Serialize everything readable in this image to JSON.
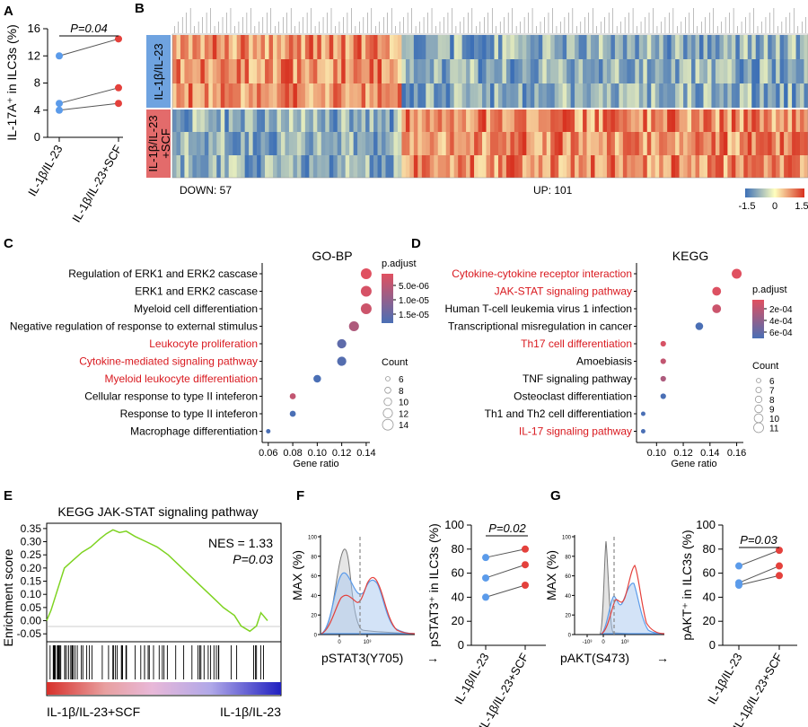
{
  "panels": {
    "A": "A",
    "B": "B",
    "C": "C",
    "D": "D",
    "E": "E",
    "F": "F",
    "G": "G"
  },
  "colors": {
    "blue": "#5b9bea",
    "red": "#e4413c",
    "line": "#555555",
    "gsea": "#7ed321"
  },
  "chart_data": [
    {
      "id": "A",
      "type": "scatter",
      "title": "",
      "ylabel": "IL-17A⁺ in ILC3s (%)",
      "categories": [
        "IL-1β/IL-23",
        "IL-1β/IL-23+SCF"
      ],
      "ylim": [
        0,
        16
      ],
      "yticks": [
        0,
        4,
        8,
        12,
        16
      ],
      "pairs": [
        [
          12,
          14.5
        ],
        [
          5,
          7.3
        ],
        [
          4,
          5
        ]
      ],
      "pvalue": "P=0.04"
    },
    {
      "id": "B",
      "type": "heatmap",
      "row_groups": [
        "IL-1β/IL-23",
        "IL-1β/IL-23\n+SCF"
      ],
      "row_group_colors": [
        "#6fa3e0",
        "#e36b6b"
      ],
      "down_label": "DOWN: 57",
      "up_label": "UP: 101",
      "down_count": 57,
      "up_count": 101,
      "samples_per_group": 3,
      "colorbar_ticks": [
        "-1.5",
        "0",
        "1.5"
      ],
      "colorbar_range": [
        -1.5,
        1.5
      ],
      "colorbar_colors": [
        "#3c6fb6",
        "#ffffbf",
        "#d7301f"
      ]
    },
    {
      "id": "C",
      "type": "scatter",
      "title": "GO-BP",
      "xlabel": "Gene ratio",
      "xlim": [
        0.055,
        0.143
      ],
      "xticks": [
        "0.06",
        "0.08",
        "0.10",
        "0.12",
        "0.14"
      ],
      "xtick_values": [
        0.06,
        0.08,
        0.1,
        0.12,
        0.14
      ],
      "terms": [
        {
          "label": "Regulation of ERK1 and ERK2 cascase",
          "ratio": 0.14,
          "count": 14,
          "padj": 1e-06,
          "highlight": false
        },
        {
          "label": "ERK1 and ERK2 cascase",
          "ratio": 0.14,
          "count": 14,
          "padj": 2e-06,
          "highlight": false
        },
        {
          "label": "Myeloid cell differentiation",
          "ratio": 0.14,
          "count": 14,
          "padj": 3e-06,
          "highlight": false
        },
        {
          "label": "Negative regulation of response to external stimulus",
          "ratio": 0.13,
          "count": 13,
          "padj": 6e-06,
          "highlight": false
        },
        {
          "label": "Leukocyte proliferation",
          "ratio": 0.12,
          "count": 12,
          "padj": 1.4e-05,
          "highlight": true
        },
        {
          "label": "Cytokine-mediated signaling pathway",
          "ratio": 0.12,
          "count": 12,
          "padj": 1.5e-05,
          "highlight": true
        },
        {
          "label": "Myeloid leukocyte differentiation",
          "ratio": 0.1,
          "count": 10,
          "padj": 1.6e-05,
          "highlight": true
        },
        {
          "label": "Cellular response to type II inteferon",
          "ratio": 0.08,
          "count": 8,
          "padj": 4e-06,
          "highlight": false
        },
        {
          "label": "Response to type II inteferon",
          "ratio": 0.08,
          "count": 8,
          "padj": 1.6e-05,
          "highlight": false
        },
        {
          "label": "Macrophage differentiation",
          "ratio": 0.06,
          "count": 6,
          "padj": 1.6e-05,
          "highlight": false
        }
      ],
      "padj_legend_title": "p.adjust",
      "padj_ticks": [
        "5.0e-06",
        "1.0e-05",
        "1.5e-05"
      ],
      "count_legend_title": "Count",
      "count_ticks": [
        "6",
        "8",
        "10",
        "12",
        "14"
      ]
    },
    {
      "id": "D",
      "type": "scatter",
      "title": "KEGG",
      "xlabel": "Gene ratio",
      "xlim": [
        0.085,
        0.165
      ],
      "xticks": [
        "0.10",
        "0.12",
        "0.14",
        "0.16"
      ],
      "xtick_values": [
        0.1,
        0.12,
        0.14,
        0.16
      ],
      "terms": [
        {
          "label": "Cytokine-cytokine receptor interaction",
          "ratio": 0.16,
          "count": 11,
          "padj": 0.00015,
          "highlight": true
        },
        {
          "label": "JAK-STAT signaling pathway",
          "ratio": 0.145,
          "count": 10,
          "padj": 0.00016,
          "highlight": true
        },
        {
          "label": "Human T-cell leukemia virus 1 infection",
          "ratio": 0.145,
          "count": 10,
          "padj": 0.00022,
          "highlight": false
        },
        {
          "label": "Transcriptional misregulation in cancer",
          "ratio": 0.132,
          "count": 9,
          "padj": 0.00065,
          "highlight": false
        },
        {
          "label": "Th17 cell differentiation",
          "ratio": 0.105,
          "count": 7,
          "padj": 0.00018,
          "highlight": true
        },
        {
          "label": "Amoebiasis",
          "ratio": 0.105,
          "count": 7,
          "padj": 0.00025,
          "highlight": false
        },
        {
          "label": "TNF signaling pathway",
          "ratio": 0.105,
          "count": 7,
          "padj": 0.00032,
          "highlight": false
        },
        {
          "label": "Osteoclast differentiation",
          "ratio": 0.105,
          "count": 7,
          "padj": 0.00065,
          "highlight": false
        },
        {
          "label": "Th1 and Th2 cell differentiation",
          "ratio": 0.09,
          "count": 6,
          "padj": 0.00065,
          "highlight": false
        },
        {
          "label": "IL-17 signaling pathway",
          "ratio": 0.09,
          "count": 6,
          "padj": 0.00065,
          "highlight": true
        }
      ],
      "padj_legend_title": "p.adjust",
      "padj_ticks": [
        "2e-04",
        "4e-04",
        "6e-04"
      ],
      "count_legend_title": "Count",
      "count_ticks": [
        "6",
        "7",
        "8",
        "9",
        "10",
        "11"
      ]
    },
    {
      "id": "E",
      "type": "line",
      "title": "KEGG JAK-STAT signaling pathway",
      "ylabel": "Enrichment score",
      "ylim": [
        -0.08,
        0.37
      ],
      "yticks": [
        "-0.05",
        "0.00",
        "0.05",
        "0.10",
        "0.15",
        "0.20",
        "0.25",
        "0.30",
        "0.35"
      ],
      "ytick_values": [
        -0.05,
        0,
        0.05,
        0.1,
        0.15,
        0.2,
        0.25,
        0.3,
        0.35
      ],
      "es_points": [
        [
          0,
          0
        ],
        [
          0.02,
          0.04
        ],
        [
          0.05,
          0.12
        ],
        [
          0.08,
          0.2
        ],
        [
          0.12,
          0.23
        ],
        [
          0.16,
          0.26
        ],
        [
          0.2,
          0.28
        ],
        [
          0.24,
          0.31
        ],
        [
          0.27,
          0.33
        ],
        [
          0.3,
          0.345
        ],
        [
          0.33,
          0.335
        ],
        [
          0.36,
          0.34
        ],
        [
          0.4,
          0.32
        ],
        [
          0.45,
          0.3
        ],
        [
          0.5,
          0.28
        ],
        [
          0.55,
          0.25
        ],
        [
          0.6,
          0.21
        ],
        [
          0.65,
          0.17
        ],
        [
          0.7,
          0.13
        ],
        [
          0.75,
          0.09
        ],
        [
          0.8,
          0.05
        ],
        [
          0.85,
          0.02
        ],
        [
          0.88,
          -0.02
        ],
        [
          0.92,
          -0.04
        ],
        [
          0.95,
          -0.02
        ],
        [
          0.97,
          0.03
        ],
        [
          1,
          0
        ]
      ],
      "nes": "NES = 1.33",
      "pvalue": "P=0.03",
      "left_label": "IL-1β/IL-23+SCF",
      "right_label": "IL-1β/IL-23"
    },
    {
      "id": "F",
      "type": "scatter",
      "histogram": {
        "ylabel": "MAX (%)",
        "xlabel": "pSTAT3(Y705)",
        "yticks": [
          "0",
          "20",
          "40",
          "60",
          "80",
          "100"
        ],
        "xticks": [
          "0",
          "10³"
        ]
      },
      "ylabel": "pSTAT3⁺ in ILC3s (%)",
      "categories": [
        "IL-1β/IL-23",
        "IL-1β/IL-23+SCF"
      ],
      "ylim": [
        0,
        100
      ],
      "yticks": [
        0,
        20,
        40,
        60,
        80,
        100
      ],
      "pairs": [
        [
          73,
          80
        ],
        [
          56,
          67
        ],
        [
          40,
          50
        ]
      ],
      "pvalue": "P=0.02"
    },
    {
      "id": "G",
      "type": "scatter",
      "histogram": {
        "ylabel": "MAX (%)",
        "xlabel": "pAKT(S473)",
        "yticks": [
          "0",
          "20",
          "40",
          "60",
          "80",
          "100"
        ],
        "xticks": [
          "-10³",
          "0",
          "10³"
        ]
      },
      "ylabel": "pAKT⁺ in ILC3s (%)",
      "categories": [
        "IL-1β/IL-23",
        "IL-1β/IL-23+SCF"
      ],
      "ylim": [
        0,
        100
      ],
      "yticks": [
        0,
        20,
        40,
        60,
        80,
        100
      ],
      "pairs": [
        [
          66,
          79
        ],
        [
          52,
          66
        ],
        [
          50,
          58
        ]
      ],
      "pvalue": "P=0.03"
    }
  ]
}
